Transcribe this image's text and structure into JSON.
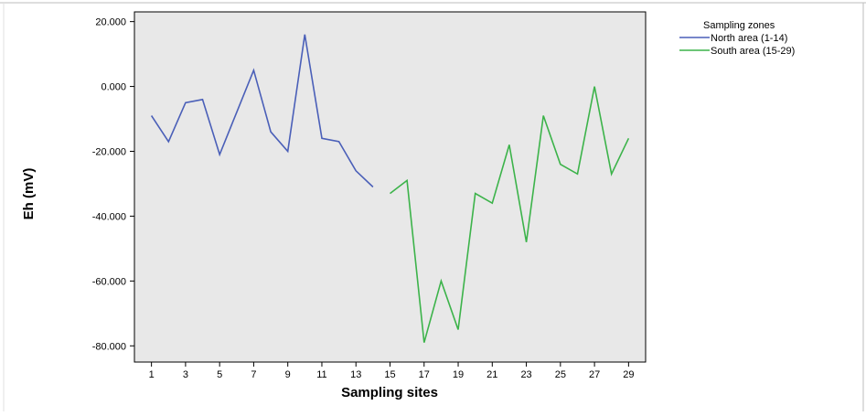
{
  "chart_data": {
    "type": "line",
    "xlabel": "Sampling sites",
    "ylabel": "Eh (mV)",
    "xlim": [
      0,
      30
    ],
    "ylim": [
      -85,
      23
    ],
    "x_ticks": [
      1,
      3,
      5,
      7,
      9,
      11,
      13,
      15,
      17,
      19,
      21,
      23,
      25,
      27,
      29
    ],
    "x_tick_labels": [
      "1",
      "3",
      "5",
      "7",
      "9",
      "11",
      "13",
      "15",
      "17",
      "19",
      "21",
      "23",
      "25",
      "27",
      "29"
    ],
    "y_ticks": [
      20,
      0,
      -20,
      -40,
      -60,
      -80
    ],
    "y_tick_labels": [
      "20.000",
      "0.000",
      "-20.000",
      "-40.000",
      "-60.000",
      "-80.000"
    ],
    "grid": false,
    "background_color": "#E8E8E8",
    "legend": {
      "title": "Sampling zones",
      "position": "right-outside-top"
    },
    "series": [
      {
        "name": "North area (1-14)",
        "color": "#4A5FB8",
        "x": [
          1,
          2,
          3,
          4,
          5,
          6,
          7,
          8,
          9,
          10,
          11,
          12,
          13,
          14
        ],
        "values": [
          -9,
          -17,
          -5,
          -4,
          -21,
          -8,
          5,
          -14,
          -20,
          16,
          -16,
          -17,
          -26,
          -31
        ]
      },
      {
        "name": "South area (15-29)",
        "color": "#3CB34A",
        "x": [
          15,
          16,
          17,
          18,
          19,
          20,
          21,
          22,
          23,
          24,
          25,
          26,
          27,
          28,
          29
        ],
        "values": [
          -33,
          -29,
          -79,
          -60,
          -75,
          -33,
          -36,
          -18,
          -48,
          -9,
          -24,
          -27,
          0,
          -27,
          -16
        ]
      }
    ]
  }
}
